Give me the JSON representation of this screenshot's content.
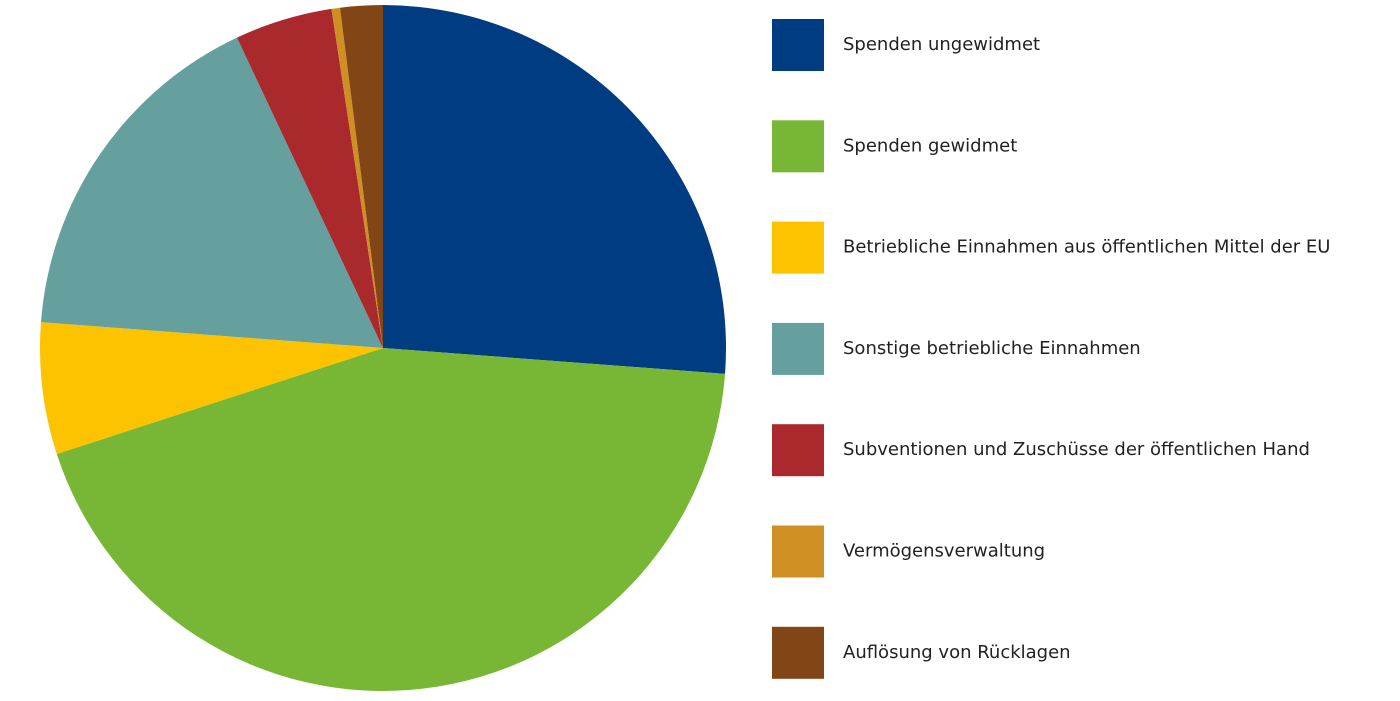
{
  "chart_data": {
    "type": "pie",
    "categories": [
      "Spenden ungewidmet",
      "Spenden gewidmet",
      "Betriebliche Einnahmen aus öffentlichen Mittel der EU",
      "Sonstige betriebliche Einnahmen",
      "Subventionen und Zuschüsse der öffentlichen Hand",
      "Vermögensverwaltung",
      "Auflösung von Rücklagen"
    ],
    "values": [
      26.2,
      43.8,
      6.2,
      16.8,
      4.6,
      0.4,
      2.0
    ],
    "colors": [
      "#003c82",
      "#77b735",
      "#fdc300",
      "#659f9e",
      "#aa292c",
      "#cf8f22",
      "#814516"
    ]
  }
}
